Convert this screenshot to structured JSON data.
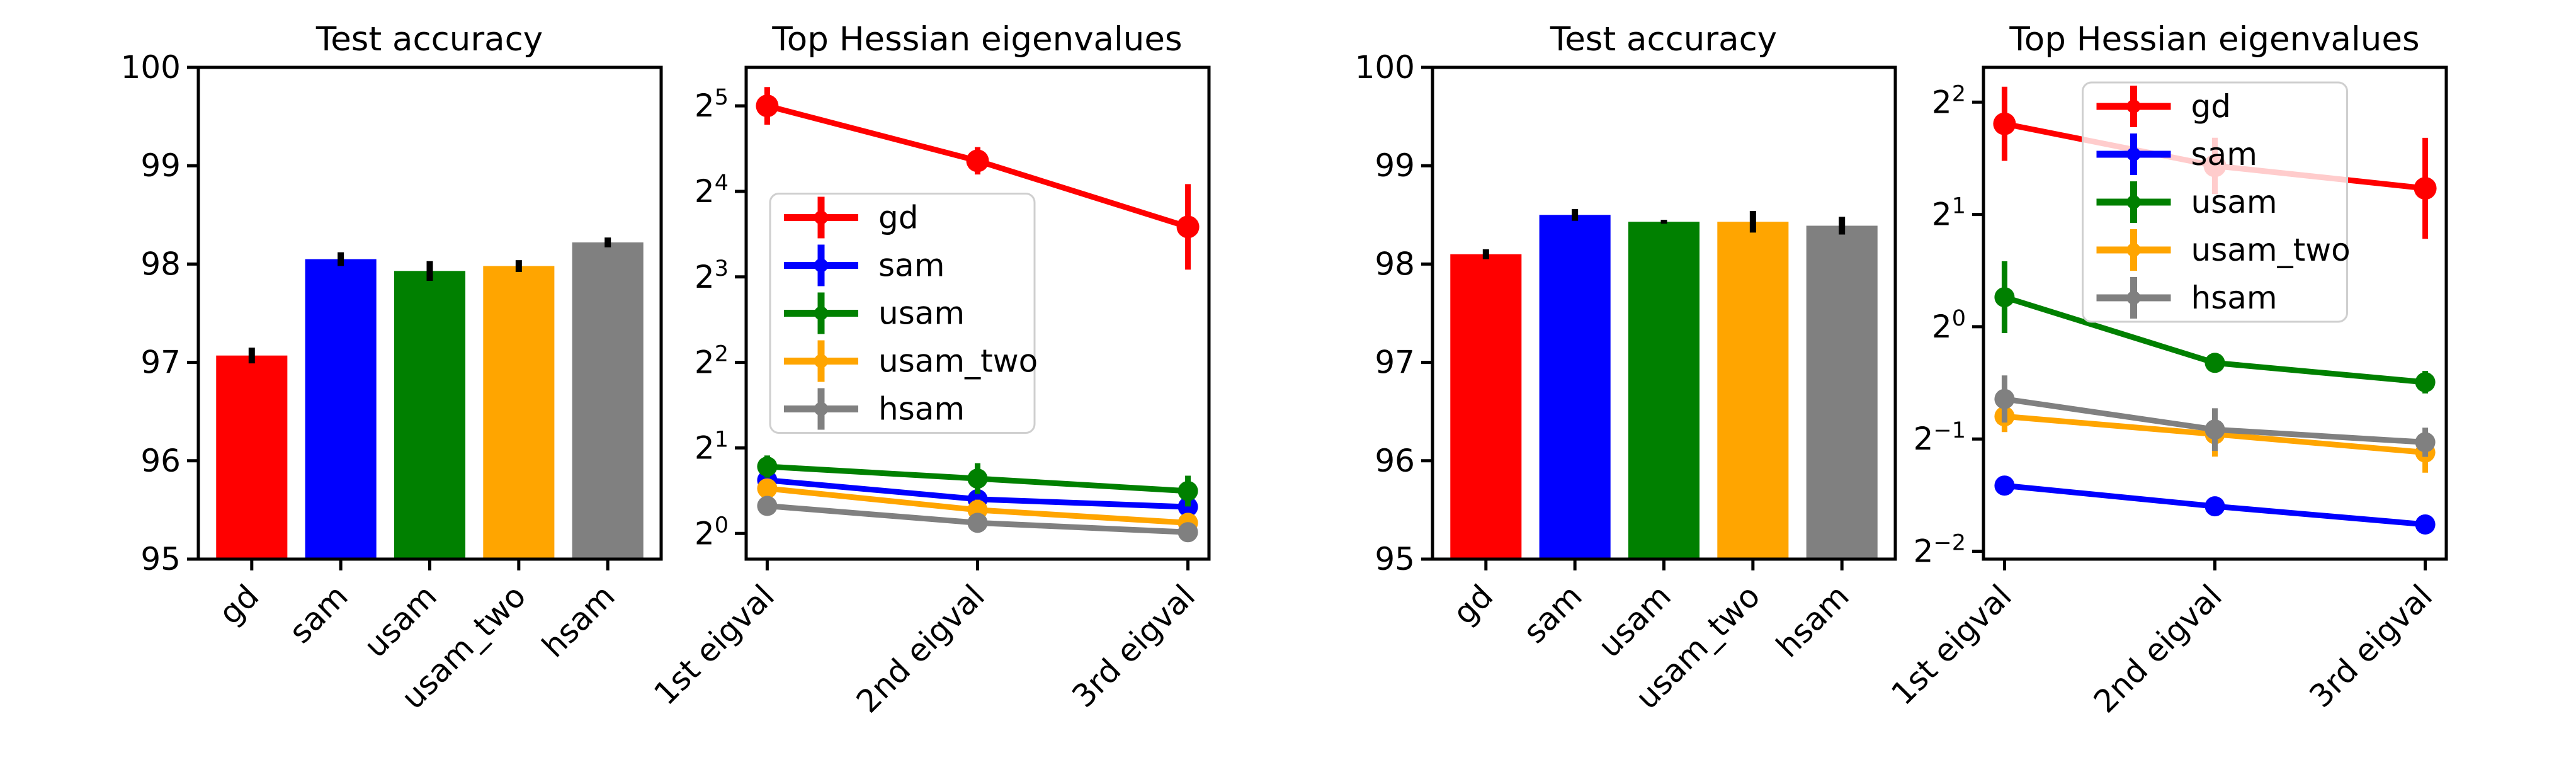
{
  "figure": {
    "background": "#ffffff",
    "text_color": "#000000"
  },
  "palette": {
    "gd": "#ff0000",
    "sam": "#0000ff",
    "usam": "#008000",
    "usam_two": "#ffa500",
    "hsam": "#808080",
    "error_bar": "#000000",
    "legend_border": "#cfcfcf",
    "legend_bg": "#ffffff",
    "legend_bg_opacity": 0.8
  },
  "chart_data": [
    {
      "id": "test-accuracy-left",
      "type": "bar",
      "title": "Test accuracy",
      "categories": [
        "gd",
        "sam",
        "usam",
        "usam_two",
        "hsam"
      ],
      "values": [
        97.07,
        98.05,
        97.93,
        97.98,
        98.22
      ],
      "errors": [
        0.08,
        0.07,
        0.1,
        0.06,
        0.05
      ],
      "bar_colors": [
        "#ff0000",
        "#0000ff",
        "#008000",
        "#ffa500",
        "#808080"
      ],
      "xlabel": "",
      "ylabel": "",
      "ylim": [
        95,
        100
      ],
      "yticks": [
        95,
        96,
        97,
        98,
        99,
        100
      ],
      "x_tick_rotation": 45,
      "grid": false,
      "legend": null
    },
    {
      "id": "hessian-eigenvalues-left",
      "type": "line",
      "title": "Top Hessian eigenvalues",
      "categories": [
        "1st eigval",
        "2nd eigval",
        "3rd eigval"
      ],
      "yscale": "log2",
      "ylim_log2": [
        -0.3,
        5.45
      ],
      "ytick_exponents": [
        0,
        1,
        2,
        3,
        4,
        5
      ],
      "x_tick_rotation": 45,
      "grid": false,
      "legend": {
        "position": "center-left",
        "labels": [
          "gd",
          "sam",
          "usam",
          "usam_two",
          "hsam"
        ]
      },
      "series": [
        {
          "name": "gd",
          "color": "#ff0000",
          "values": [
            32.0,
            20.5,
            12.0
          ],
          "errors_log2": [
            0.22,
            0.16,
            0.5
          ]
        },
        {
          "name": "sam",
          "color": "#0000ff",
          "values": [
            1.54,
            1.32,
            1.24
          ],
          "errors_log2": [
            0.1,
            0.13,
            0.12
          ]
        },
        {
          "name": "usam",
          "color": "#008000",
          "values": [
            1.72,
            1.56,
            1.41
          ],
          "errors_log2": [
            0.13,
            0.18,
            0.18
          ]
        },
        {
          "name": "usam_two",
          "color": "#ffa500",
          "values": [
            1.44,
            1.21,
            1.09
          ],
          "errors_log2": [
            0.1,
            0.12,
            0.11
          ]
        },
        {
          "name": "hsam",
          "color": "#808080",
          "values": [
            1.25,
            1.09,
            1.01
          ],
          "errors_log2": [
            0.08,
            0.1,
            0.08
          ]
        }
      ]
    },
    {
      "id": "test-accuracy-right",
      "type": "bar",
      "title": "Test accuracy",
      "categories": [
        "gd",
        "sam",
        "usam",
        "usam_two",
        "hsam"
      ],
      "values": [
        98.1,
        98.5,
        98.43,
        98.43,
        98.39
      ],
      "errors": [
        0.05,
        0.06,
        0.02,
        0.11,
        0.09
      ],
      "bar_colors": [
        "#ff0000",
        "#0000ff",
        "#008000",
        "#ffa500",
        "#808080"
      ],
      "xlabel": "",
      "ylabel": "",
      "ylim": [
        95,
        100
      ],
      "yticks": [
        95,
        96,
        97,
        98,
        99,
        100
      ],
      "x_tick_rotation": 45,
      "grid": false,
      "legend": null
    },
    {
      "id": "hessian-eigenvalues-right",
      "type": "line",
      "title": "Top Hessian eigenvalues",
      "categories": [
        "1st eigval",
        "2nd eigval",
        "3rd eigval"
      ],
      "yscale": "log2",
      "ylim_log2": [
        -2.07,
        2.31
      ],
      "ytick_exponents": [
        2,
        1,
        0,
        -1,
        -2
      ],
      "x_tick_rotation": 45,
      "grid": false,
      "legend": {
        "position": "upper-center",
        "labels": [
          "gd",
          "sam",
          "usam",
          "usam_two",
          "hsam"
        ]
      },
      "series": [
        {
          "name": "gd",
          "color": "#ff0000",
          "values": [
            3.5,
            2.7,
            2.35
          ],
          "errors_log2": [
            0.33,
            0.25,
            0.45
          ]
        },
        {
          "name": "sam",
          "color": "#0000ff",
          "values": [
            0.375,
            0.33,
            0.295
          ],
          "errors_log2": [
            0.03,
            0.03,
            0.03
          ]
        },
        {
          "name": "usam",
          "color": "#008000",
          "values": [
            1.2,
            0.8,
            0.71
          ],
          "errors_log2": [
            0.32,
            0.06,
            0.1
          ]
        },
        {
          "name": "usam_two",
          "color": "#ffa500",
          "values": [
            0.575,
            0.515,
            0.46
          ],
          "errors_log2": [
            0.14,
            0.2,
            0.18
          ]
        },
        {
          "name": "hsam",
          "color": "#808080",
          "values": [
            0.64,
            0.53,
            0.49
          ],
          "errors_log2": [
            0.21,
            0.19,
            0.13
          ]
        }
      ]
    }
  ]
}
